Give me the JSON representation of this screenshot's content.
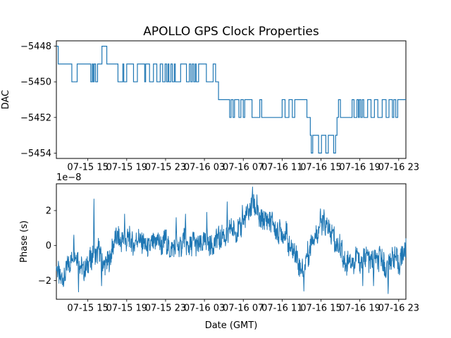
{
  "figure": {
    "title": "APOLLO GPS Clock Properties",
    "background": "#ffffff",
    "line_color": "#1f77b4",
    "text_color": "#000000"
  },
  "xticks": [
    {
      "t": 15,
      "label": "07-15 15"
    },
    {
      "t": 19,
      "label": "07-15 19"
    },
    {
      "t": 23,
      "label": "07-15 23"
    },
    {
      "t": 27,
      "label": "07-16 03"
    },
    {
      "t": 31,
      "label": "07-16 07"
    },
    {
      "t": 35,
      "label": "07-16 11"
    },
    {
      "t": 39,
      "label": "07-16 15"
    },
    {
      "t": 43,
      "label": "07-16 19"
    },
    {
      "t": 47,
      "label": "07-16 23"
    }
  ],
  "chart_data": [
    {
      "type": "line",
      "drawstyle": "steps-post",
      "series_name": "DAC",
      "ylabel": "DAC",
      "ylim": [
        -5454.3,
        -5447.7
      ],
      "xlim_hours": [
        11.76,
        47.74
      ],
      "grid": false,
      "yticks": [
        {
          "v": -5448,
          "label": "−5448"
        },
        {
          "v": -5450,
          "label": "−5450"
        },
        {
          "v": -5452,
          "label": "−5452"
        },
        {
          "v": -5454,
          "label": "−5454"
        }
      ],
      "steps": [
        [
          11.76,
          -5448
        ],
        [
          11.95,
          -5449
        ],
        [
          13.35,
          -5450
        ],
        [
          13.9,
          -5449
        ],
        [
          15.3,
          -5450
        ],
        [
          15.45,
          -5449
        ],
        [
          15.55,
          -5450
        ],
        [
          15.65,
          -5449
        ],
        [
          15.8,
          -5450
        ],
        [
          16.0,
          -5449
        ],
        [
          16.45,
          -5448
        ],
        [
          16.95,
          -5449
        ],
        [
          18.1,
          -5450
        ],
        [
          18.6,
          -5449
        ],
        [
          18.7,
          -5450
        ],
        [
          19.0,
          -5449
        ],
        [
          19.7,
          -5450
        ],
        [
          20.1,
          -5449
        ],
        [
          20.85,
          -5450
        ],
        [
          20.95,
          -5449
        ],
        [
          21.35,
          -5450
        ],
        [
          21.75,
          -5449
        ],
        [
          22.1,
          -5450
        ],
        [
          22.45,
          -5449
        ],
        [
          22.7,
          -5450
        ],
        [
          22.95,
          -5449
        ],
        [
          23.1,
          -5450
        ],
        [
          23.25,
          -5449
        ],
        [
          23.35,
          -5450
        ],
        [
          23.55,
          -5449
        ],
        [
          23.7,
          -5450
        ],
        [
          23.9,
          -5449
        ],
        [
          24.0,
          -5450
        ],
        [
          24.55,
          -5449
        ],
        [
          25.15,
          -5450
        ],
        [
          25.45,
          -5449
        ],
        [
          25.6,
          -5450
        ],
        [
          25.75,
          -5449
        ],
        [
          25.9,
          -5450
        ],
        [
          26.05,
          -5449
        ],
        [
          26.15,
          -5450
        ],
        [
          26.4,
          -5449
        ],
        [
          27.2,
          -5450
        ],
        [
          27.9,
          -5449
        ],
        [
          28.15,
          -5450
        ],
        [
          28.45,
          -5451
        ],
        [
          29.6,
          -5452
        ],
        [
          29.75,
          -5451
        ],
        [
          29.95,
          -5452
        ],
        [
          30.1,
          -5451
        ],
        [
          30.55,
          -5452
        ],
        [
          30.75,
          -5451
        ],
        [
          31.0,
          -5452
        ],
        [
          31.15,
          -5451
        ],
        [
          31.9,
          -5452
        ],
        [
          32.7,
          -5451
        ],
        [
          32.9,
          -5452
        ],
        [
          35.0,
          -5451
        ],
        [
          35.3,
          -5452
        ],
        [
          35.7,
          -5451
        ],
        [
          36.05,
          -5452
        ],
        [
          36.3,
          -5451
        ],
        [
          37.55,
          -5452
        ],
        [
          37.9,
          -5453
        ],
        [
          38.0,
          -5454
        ],
        [
          38.15,
          -5453
        ],
        [
          38.75,
          -5454
        ],
        [
          39.05,
          -5453
        ],
        [
          39.5,
          -5454
        ],
        [
          39.75,
          -5453
        ],
        [
          40.3,
          -5454
        ],
        [
          40.5,
          -5453
        ],
        [
          40.65,
          -5452
        ],
        [
          40.8,
          -5451
        ],
        [
          41.0,
          -5452
        ],
        [
          42.2,
          -5451
        ],
        [
          42.4,
          -5452
        ],
        [
          42.7,
          -5451
        ],
        [
          42.85,
          -5452
        ],
        [
          42.95,
          -5451
        ],
        [
          43.1,
          -5452
        ],
        [
          43.25,
          -5451
        ],
        [
          43.4,
          -5452
        ],
        [
          43.8,
          -5451
        ],
        [
          44.15,
          -5452
        ],
        [
          44.5,
          -5451
        ],
        [
          44.85,
          -5452
        ],
        [
          45.3,
          -5451
        ],
        [
          45.7,
          -5452
        ],
        [
          46.0,
          -5451
        ],
        [
          46.35,
          -5452
        ],
        [
          46.5,
          -5451
        ],
        [
          46.7,
          -5452
        ],
        [
          46.9,
          -5451
        ]
      ]
    },
    {
      "type": "line",
      "series_name": "Phase",
      "ylabel": "Phase (s)",
      "xlabel": "Date (GMT)",
      "offset_text": "1e−8",
      "unit_note": "values in units of 1e-8 seconds",
      "ylim": [
        -3.07,
        3.53
      ],
      "xlim_hours": [
        11.76,
        47.74
      ],
      "grid": false,
      "yticks": [
        {
          "v": 2,
          "label": "2"
        },
        {
          "v": 0,
          "label": "0"
        },
        {
          "v": -2,
          "label": "−2"
        }
      ],
      "trend": [
        [
          11.76,
          -1.45
        ],
        [
          12.1,
          -1.8
        ],
        [
          12.45,
          -2.1
        ],
        [
          12.8,
          -1.35
        ],
        [
          13.3,
          -0.75
        ],
        [
          13.55,
          -0.55
        ],
        [
          13.9,
          -0.6
        ],
        [
          14.2,
          -1.05
        ],
        [
          14.6,
          -1.25
        ],
        [
          15.0,
          -1.05
        ],
        [
          15.35,
          -0.55
        ],
        [
          15.6,
          -0.1
        ],
        [
          15.8,
          -0.55
        ],
        [
          16.1,
          -0.4
        ],
        [
          16.45,
          -1.1
        ],
        [
          16.8,
          -0.95
        ],
        [
          17.1,
          -0.85
        ],
        [
          17.45,
          -0.3
        ],
        [
          17.8,
          0.1
        ],
        [
          18.2,
          0.25
        ],
        [
          18.6,
          0.15
        ],
        [
          19.0,
          0.1
        ],
        [
          19.4,
          0.3
        ],
        [
          19.8,
          0.15
        ],
        [
          20.2,
          0.3
        ],
        [
          20.6,
          0.25
        ],
        [
          21.0,
          0.05
        ],
        [
          21.4,
          0.15
        ],
        [
          21.8,
          0.3
        ],
        [
          22.2,
          0.2
        ],
        [
          22.6,
          0.0
        ],
        [
          23.0,
          0.2
        ],
        [
          23.4,
          -0.15
        ],
        [
          23.8,
          0.05
        ],
        [
          24.2,
          0.1
        ],
        [
          24.6,
          0.15
        ],
        [
          25.0,
          0.35
        ],
        [
          25.4,
          0.15
        ],
        [
          25.8,
          0.3
        ],
        [
          26.2,
          0.1
        ],
        [
          26.6,
          0.05
        ],
        [
          27.0,
          0.3
        ],
        [
          27.4,
          0.15
        ],
        [
          27.8,
          0.3
        ],
        [
          28.2,
          0.4
        ],
        [
          28.6,
          0.5
        ],
        [
          29.0,
          0.55
        ],
        [
          29.4,
          0.75
        ],
        [
          29.8,
          0.9
        ],
        [
          30.2,
          1.0
        ],
        [
          30.6,
          1.1
        ],
        [
          31.1,
          1.5
        ],
        [
          31.5,
          1.9
        ],
        [
          31.9,
          2.3
        ],
        [
          32.2,
          1.9
        ],
        [
          32.6,
          1.65
        ],
        [
          33.0,
          1.4
        ],
        [
          33.5,
          1.3
        ],
        [
          34.0,
          1.15
        ],
        [
          34.5,
          1.0
        ],
        [
          35.0,
          0.85
        ],
        [
          35.5,
          0.45
        ],
        [
          36.0,
          -0.1
        ],
        [
          36.4,
          -0.6
        ],
        [
          36.8,
          -1.15
        ],
        [
          37.2,
          -1.45
        ],
        [
          37.6,
          -0.7
        ],
        [
          38.0,
          0.3
        ],
        [
          38.4,
          0.85
        ],
        [
          38.8,
          1.1
        ],
        [
          39.2,
          1.25
        ],
        [
          39.6,
          0.95
        ],
        [
          40.0,
          0.6
        ],
        [
          40.4,
          0.2
        ],
        [
          40.8,
          -0.1
        ],
        [
          41.2,
          -0.55
        ],
        [
          41.6,
          -0.8
        ],
        [
          42.0,
          -0.75
        ],
        [
          42.4,
          -0.9
        ],
        [
          42.8,
          -0.7
        ],
        [
          43.2,
          -0.95
        ],
        [
          43.6,
          -0.8
        ],
        [
          44.0,
          -0.65
        ],
        [
          44.4,
          -0.9
        ],
        [
          44.8,
          -0.75
        ],
        [
          45.2,
          -0.9
        ],
        [
          45.6,
          -1.2
        ],
        [
          46.0,
          -1.1
        ],
        [
          46.4,
          -0.8
        ],
        [
          46.8,
          -0.95
        ],
        [
          47.2,
          -0.8
        ],
        [
          47.74,
          -0.45
        ]
      ],
      "spikes": [
        [
          12.5,
          -2.3
        ],
        [
          13.55,
          0.6
        ],
        [
          14.05,
          -2.65
        ],
        [
          15.62,
          2.66
        ],
        [
          16.4,
          -2.3
        ],
        [
          18.77,
          1.8
        ],
        [
          24.1,
          1.6
        ],
        [
          25.05,
          1.8
        ],
        [
          27.25,
          1.9
        ],
        [
          29.35,
          2.5
        ],
        [
          30.9,
          2.3
        ],
        [
          31.95,
          3.35
        ],
        [
          32.4,
          2.9
        ],
        [
          37.25,
          -2.6
        ],
        [
          38.95,
          2.1
        ],
        [
          39.3,
          2.05
        ],
        [
          43.3,
          -2.3
        ],
        [
          44.4,
          -2.3
        ],
        [
          45.9,
          -2.75
        ]
      ],
      "noise": {
        "amp": 0.62,
        "amp2": 0.3,
        "seed": 3,
        "samples": 1200
      }
    }
  ]
}
